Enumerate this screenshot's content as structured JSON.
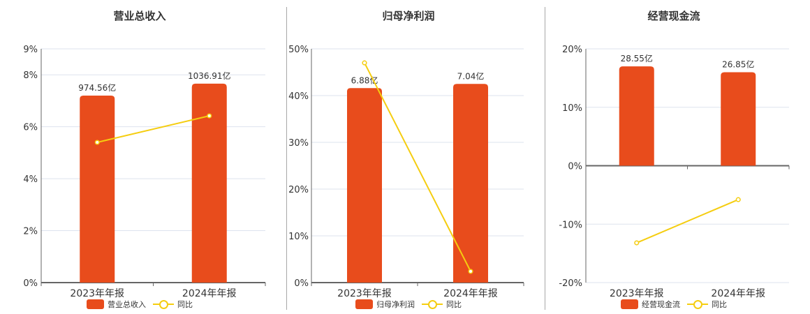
{
  "colors": {
    "bar": "#e84c1c",
    "line": "#f5cd10",
    "grid": "#dde3ee",
    "axis": "#666666"
  },
  "legend_yoy": "同比",
  "chart_data": [
    {
      "type": "bar+line",
      "title": "营业总收入",
      "categories": [
        "2023年年报",
        "2024年年报"
      ],
      "series": [
        {
          "name": "营业总收入",
          "type": "bar",
          "labels": [
            "974.56亿",
            "1036.91亿"
          ],
          "values": [
            974.56,
            1036.91
          ],
          "plot_pct": [
            7.2,
            7.66
          ]
        },
        {
          "name": "同比",
          "type": "line",
          "values": [
            5.4,
            6.42
          ]
        }
      ],
      "yticks": [
        "0%",
        "2%",
        "4%",
        "6%",
        "8%",
        "9%"
      ],
      "ylim": [
        0,
        9
      ],
      "grid": true,
      "legend_position": "bottom"
    },
    {
      "type": "bar+line",
      "title": "归母净利润",
      "categories": [
        "2023年年报",
        "2024年年报"
      ],
      "series": [
        {
          "name": "归母净利润",
          "type": "bar",
          "labels": [
            "6.88亿",
            "7.04亿"
          ],
          "values": [
            6.88,
            7.04
          ],
          "plot_pct": [
            41.6,
            42.5
          ]
        },
        {
          "name": "同比",
          "type": "line",
          "values": [
            47.0,
            2.4
          ]
        }
      ],
      "yticks": [
        "0%",
        "10%",
        "20%",
        "30%",
        "40%",
        "50%"
      ],
      "ylim": [
        0,
        50
      ],
      "grid": true,
      "legend_position": "bottom"
    },
    {
      "type": "bar+line",
      "title": "经营现金流",
      "categories": [
        "2023年年报",
        "2024年年报"
      ],
      "series": [
        {
          "name": "经营现金流",
          "type": "bar",
          "labels": [
            "28.55亿",
            "26.85亿"
          ],
          "values": [
            28.55,
            26.85
          ],
          "plot_pct": [
            17.0,
            16.0
          ]
        },
        {
          "name": "同比",
          "type": "line",
          "values": [
            -13.2,
            -5.8
          ]
        }
      ],
      "yticks": [
        "-20%",
        "-10%",
        "0%",
        "10%",
        "20%"
      ],
      "ylim": [
        -20,
        20
      ],
      "grid": true,
      "legend_position": "bottom"
    }
  ]
}
